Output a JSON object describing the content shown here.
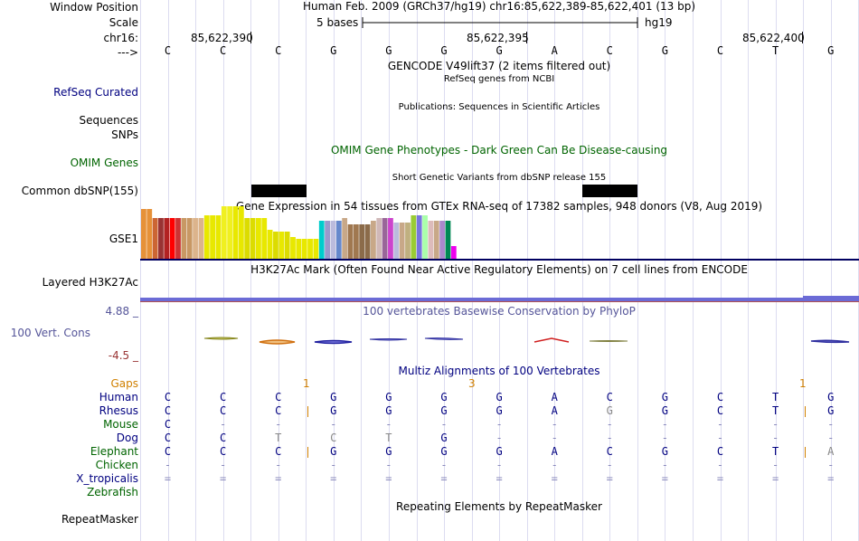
{
  "header": {
    "window_label": "Window Position",
    "window_text": "Human Feb. 2009 (GRCh37/hg19)   chr16:85,622,389-85,622,401 (13 bp)",
    "scale_label": "Scale",
    "scale_text": "5 bases",
    "scale_assembly": "hg19",
    "chrom_label": "chr16:",
    "positions": [
      "85,622,390",
      "85,622,395",
      "85,622,400"
    ],
    "strand_label": "--->"
  },
  "bases": [
    "C",
    "C",
    "C",
    "G",
    "G",
    "G",
    "G",
    "A",
    "C",
    "G",
    "C",
    "T",
    "G"
  ],
  "tracks": {
    "gencode_title": "GENCODE V49lift37 (2 items filtered out)",
    "refseq_title": "RefSeq genes from NCBI",
    "refseq_label": "RefSeq Curated",
    "pubs_title": "Publications: Sequences in Scientific Articles",
    "sequences_label": "Sequences",
    "snps_label": "SNPs",
    "omim_title": "OMIM Gene Phenotypes - Dark Green Can Be Disease-causing",
    "omim_label": "OMIM Genes",
    "dbsnp_title": "Short Genetic Variants from dbSNP release 155",
    "dbsnp_label": "Common dbSNP(155)",
    "gtex_title": "Gene Expression in 54 tissues from GTEx RNA-seq of 17382 samples, 948 donors (V8, Aug 2019)",
    "gtex_label": "GSE1",
    "h3k27_title": "H3K27Ac Mark (Often Found Near Active Regulatory Elements) on 7 cell lines from ENCODE",
    "h3k27_label": "Layered H3K27Ac",
    "cons_title": "100 vertebrates Basewise Conservation by PhyloP",
    "cons_label": "100 Vert. Cons",
    "cons_max": "4.88 _",
    "cons_min": "-4.5 _",
    "multiz_title": "Multiz Alignments of 100 Vertebrates",
    "gaps_label": "Gaps",
    "gap_counts": [
      "1",
      "3",
      "1"
    ],
    "repeat_title": "Repeating Elements by RepeatMasker",
    "repeat_label": "RepeatMasker"
  },
  "colors": {
    "track_label": "#000080",
    "omim": "#006400",
    "species": "#000080",
    "species_green": "#006400",
    "gaps": "#d08000",
    "cons": "#555599",
    "cons_min": "#993333"
  },
  "gtex_values": [
    55,
    55,
    45,
    45,
    45,
    45,
    45,
    45,
    45,
    45,
    45,
    48,
    48,
    48,
    58,
    58,
    58,
    58,
    45,
    45,
    45,
    45,
    32,
    30,
    30,
    30,
    24,
    22,
    22,
    22,
    22,
    42,
    42,
    42,
    42,
    45,
    38,
    38,
    38,
    38,
    42,
    45,
    45,
    45,
    40,
    40,
    40,
    48,
    48,
    48,
    42,
    42,
    42,
    42,
    14
  ],
  "alignment": [
    {
      "species": "Human",
      "row": [
        "C",
        "C",
        "C",
        "G",
        "G",
        "G",
        "G",
        "A",
        "C",
        "G",
        "C",
        "T",
        "G"
      ],
      "gaps": []
    },
    {
      "species": "Rhesus",
      "row": [
        "C",
        "C",
        "C",
        "G",
        "G",
        "G",
        "G",
        "A",
        "G",
        "G",
        "C",
        "T",
        "G"
      ],
      "gaps": [
        2,
        11
      ]
    },
    {
      "species": "Mouse",
      "row": [
        "C",
        "-",
        "-",
        "-",
        "-",
        "-",
        "-",
        "-",
        "-",
        "-",
        "-",
        "-",
        "-"
      ],
      "gaps": []
    },
    {
      "species": "Dog",
      "row": [
        "C",
        "C",
        "T",
        "C",
        "T",
        "G",
        "-",
        "-",
        "-",
        "-",
        "-",
        "-",
        "-"
      ],
      "gaps": []
    },
    {
      "species": "Elephant",
      "row": [
        "C",
        "C",
        "C",
        "G",
        "G",
        "G",
        "G",
        "A",
        "C",
        "G",
        "C",
        "T",
        "A"
      ],
      "gaps": [
        2,
        11
      ]
    },
    {
      "species": "Chicken",
      "row": [
        "-",
        "-",
        "-",
        "-",
        "-",
        "-",
        "-",
        "-",
        "-",
        "-",
        "-",
        "-",
        "-"
      ],
      "gaps": []
    },
    {
      "species": "X_tropicalis",
      "row": [
        "=",
        "=",
        "=",
        "=",
        "=",
        "=",
        "=",
        "=",
        "=",
        "=",
        "=",
        "=",
        "="
      ],
      "gaps": []
    },
    {
      "species": "Zebrafish",
      "row": [],
      "gaps": []
    }
  ]
}
